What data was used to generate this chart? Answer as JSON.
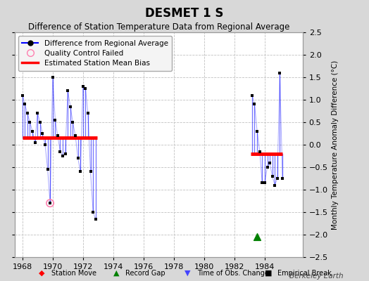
{
  "title": "DESMET 1 S",
  "subtitle": "Difference of Station Temperature Data from Regional Average",
  "ylabel": "Monthly Temperature Anomaly Difference (°C)",
  "credit": "Berkeley Earth",
  "xlim": [
    1967.5,
    1986.5
  ],
  "ylim": [
    -2.5,
    2.5
  ],
  "xticks": [
    1968,
    1970,
    1972,
    1974,
    1976,
    1978,
    1980,
    1982,
    1984
  ],
  "yticks": [
    -2.5,
    -2,
    -1.5,
    -1,
    -0.5,
    0,
    0.5,
    1,
    1.5,
    2,
    2.5
  ],
  "background_color": "#d8d8d8",
  "plot_background": "#ffffff",
  "grid_color": "#c0c0c0",
  "segment1": {
    "x": [
      1968.0,
      1968.17,
      1968.33,
      1968.5,
      1968.67,
      1968.83,
      1969.0,
      1969.17,
      1969.33,
      1969.5,
      1969.67,
      1969.83,
      1970.0,
      1970.17,
      1970.33,
      1970.5,
      1970.67,
      1970.83,
      1971.0,
      1971.17,
      1971.33,
      1971.5,
      1971.67,
      1971.83,
      1972.0,
      1972.17,
      1972.33,
      1972.5,
      1972.67,
      1972.83
    ],
    "y": [
      1.1,
      0.9,
      0.7,
      0.5,
      0.3,
      0.05,
      0.7,
      0.5,
      0.25,
      0.0,
      -0.55,
      -1.3,
      1.5,
      0.55,
      0.2,
      -0.15,
      -0.25,
      -0.2,
      1.2,
      0.85,
      0.5,
      0.2,
      -0.3,
      -0.6,
      1.3,
      1.25,
      0.7,
      -0.6,
      -1.5,
      -1.65
    ],
    "bias": 0.15,
    "bias_xstart": 1968.0,
    "bias_xend": 1972.92
  },
  "segment2": {
    "x": [
      1983.17,
      1983.33,
      1983.5,
      1983.67,
      1983.83,
      1984.0,
      1984.17,
      1984.33,
      1984.5,
      1984.67,
      1984.83,
      1985.0,
      1985.17
    ],
    "y": [
      1.1,
      0.9,
      0.3,
      -0.15,
      -0.85,
      -0.85,
      -0.5,
      -0.4,
      -0.7,
      -0.9,
      -0.75,
      1.6,
      -0.75
    ],
    "bias": -0.2,
    "bias_xstart": 1983.08,
    "bias_xend": 1985.17
  },
  "qc_failed_x": 1969.83,
  "qc_failed_y": -1.3,
  "record_gap_x": 1983.5,
  "record_gap_y": -2.05
}
